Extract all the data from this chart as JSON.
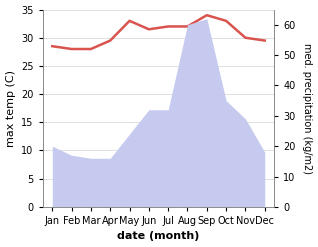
{
  "months": [
    "Jan",
    "Feb",
    "Mar",
    "Apr",
    "May",
    "Jun",
    "Jul",
    "Aug",
    "Sep",
    "Oct",
    "Nov",
    "Dec"
  ],
  "month_indices": [
    0,
    1,
    2,
    3,
    4,
    5,
    6,
    7,
    8,
    9,
    10,
    11
  ],
  "temperature": [
    28.5,
    28.0,
    28.0,
    29.5,
    33.0,
    31.5,
    32.0,
    32.0,
    34.0,
    33.0,
    30.0,
    29.5
  ],
  "precipitation": [
    20,
    17,
    16,
    16,
    24,
    32,
    32,
    60,
    62,
    35,
    29,
    18
  ],
  "temp_color": "#d9534f",
  "precip_fill_color": "#c5caee",
  "temp_ylim": [
    0,
    35
  ],
  "precip_ylim": [
    0,
    65
  ],
  "temp_yticks": [
    0,
    5,
    10,
    15,
    20,
    25,
    30,
    35
  ],
  "precip_yticks": [
    0,
    10,
    20,
    30,
    40,
    50,
    60
  ],
  "xlabel": "date (month)",
  "ylabel_left": "max temp (C)",
  "ylabel_right": "med. precipitation (kg/m2)",
  "figsize": [
    3.18,
    2.47
  ],
  "dpi": 100
}
